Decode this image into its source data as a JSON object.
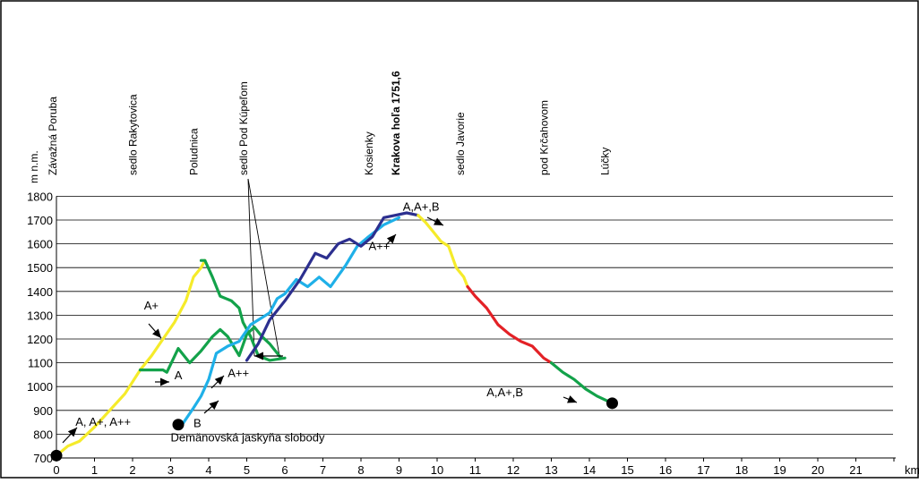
{
  "chart_data": {
    "type": "line",
    "ylabel": "m n.m.",
    "xlabel": "km",
    "xlim": [
      0,
      22
    ],
    "ylim": [
      700,
      1800
    ],
    "x_ticks": [
      "0",
      "1",
      "2",
      "3",
      "4",
      "5",
      "6",
      "7",
      "8",
      "9",
      "10",
      "11",
      "12",
      "13",
      "14",
      "15",
      "16",
      "17",
      "18",
      "19",
      "20",
      "21"
    ],
    "y_ticks": [
      "700",
      "800",
      "900",
      "1000",
      "1100",
      "1200",
      "1300",
      "1400",
      "1500",
      "1600",
      "1700",
      "1800"
    ],
    "grid": "horizontal",
    "colors": {
      "yellow": "#f5eb2a",
      "green": "#13a24a",
      "light_blue": "#1fb0e8",
      "dark_blue": "#2c2f8f",
      "red": "#e32126",
      "black": "#000000"
    },
    "locations": [
      {
        "name": "Závažná Poruba",
        "x": 0,
        "bold": false
      },
      {
        "name": "sedlo Rakytovica",
        "x": 2.2,
        "bold": false
      },
      {
        "name": "Poludnica",
        "x": 3.8,
        "bold": false
      },
      {
        "name": "sedlo Pod Kúpeľom",
        "x": 5.1,
        "bold": false
      },
      {
        "name": "Kosienky",
        "x": 8.4,
        "bold": false
      },
      {
        "name": "Krakova hoľa 1751,6",
        "x": 9.1,
        "bold": true
      },
      {
        "name": "sedlo Javorie",
        "x": 10.8,
        "bold": false
      },
      {
        "name": "pod Krčahovom",
        "x": 13.0,
        "bold": false
      },
      {
        "name": "Lúčky",
        "x": 14.6,
        "bold": false
      }
    ],
    "series": [
      {
        "color": "#f5eb2a",
        "x": [
          0,
          0.3,
          0.6,
          1.0,
          1.4,
          1.8,
          2.2,
          2.5,
          2.8,
          3.1,
          3.4,
          3.6,
          3.8,
          3.9
        ],
        "y": [
          710,
          750,
          770,
          830,
          900,
          970,
          1070,
          1130,
          1200,
          1270,
          1360,
          1460,
          1500,
          1530
        ]
      },
      {
        "color": "#13a24a",
        "x": [
          2.2,
          2.8,
          2.9,
          3.2,
          3.5,
          3.8,
          4.1,
          4.3,
          4.5,
          4.8,
          5.0,
          5.2,
          5.4,
          5.6,
          5.9
        ],
        "y": [
          1070,
          1070,
          1060,
          1160,
          1100,
          1150,
          1210,
          1240,
          1210,
          1130,
          1220,
          1250,
          1210,
          1180,
          1120
        ]
      },
      {
        "color": "#13a24a",
        "x": [
          3.8,
          3.9,
          4.1,
          4.3,
          4.6,
          4.8,
          4.9,
          5.1,
          5.3,
          5.6,
          6.0
        ],
        "y": [
          1530,
          1530,
          1460,
          1380,
          1360,
          1330,
          1270,
          1210,
          1130,
          1110,
          1120
        ]
      },
      {
        "color": "#1fb0e8",
        "x": [
          3.3,
          3.6,
          3.8,
          4.0,
          4.2,
          4.5,
          4.8,
          5.1,
          5.4,
          5.6,
          5.8,
          6.0,
          6.3,
          6.6,
          6.9,
          7.2,
          7.6,
          7.9,
          8.2,
          8.6,
          9.0
        ],
        "y": [
          840,
          910,
          960,
          1030,
          1140,
          1170,
          1190,
          1260,
          1290,
          1310,
          1370,
          1390,
          1450,
          1420,
          1460,
          1420,
          1510,
          1590,
          1630,
          1680,
          1710
        ]
      },
      {
        "color": "#2c2f8f",
        "x": [
          5.0,
          5.3,
          5.6,
          6.0,
          6.4,
          6.8,
          7.1,
          7.4,
          7.7,
          8.0,
          8.3,
          8.6,
          8.9,
          9.2,
          9.5
        ],
        "y": [
          1110,
          1180,
          1280,
          1360,
          1450,
          1560,
          1540,
          1600,
          1620,
          1590,
          1630,
          1710,
          1720,
          1730,
          1720
        ]
      },
      {
        "color": "#f5eb2a",
        "x": [
          9.5,
          9.7,
          9.9,
          10.1,
          10.3,
          10.5,
          10.7,
          10.8
        ],
        "y": [
          1720,
          1690,
          1650,
          1610,
          1590,
          1500,
          1460,
          1420
        ]
      },
      {
        "color": "#e32126",
        "x": [
          10.8,
          11.0,
          11.3,
          11.6,
          11.9,
          12.2,
          12.5,
          12.8,
          13.0
        ],
        "y": [
          1420,
          1380,
          1330,
          1260,
          1220,
          1190,
          1170,
          1120,
          1100
        ]
      },
      {
        "color": "#13a24a",
        "x": [
          13.0,
          13.3,
          13.6,
          13.9,
          14.2,
          14.6
        ],
        "y": [
          1100,
          1060,
          1030,
          990,
          960,
          930
        ]
      }
    ],
    "endpoints": [
      {
        "x": 0,
        "y": 710
      },
      {
        "x": 3.2,
        "y": 840
      },
      {
        "x": 14.6,
        "y": 930
      }
    ],
    "annotations": [
      {
        "text": "A, A+, A++",
        "x": 0.5,
        "y": 835
      },
      {
        "text": "A+",
        "x": 2.3,
        "y": 1325
      },
      {
        "text": "A",
        "x": 3.1,
        "y": 1030
      },
      {
        "text": "A++",
        "x": 4.5,
        "y": 1040
      },
      {
        "text": "B",
        "x": 3.6,
        "y": 830
      },
      {
        "text": "A++",
        "x": 8.2,
        "y": 1575
      },
      {
        "text": "A,A+,B",
        "x": 9.1,
        "y": 1740
      },
      {
        "text": "A,A+,B",
        "x": 11.3,
        "y": 960
      },
      {
        "text": "Demänovská jaskyňa slobody",
        "x": 3.0,
        "y": 770
      }
    ]
  }
}
